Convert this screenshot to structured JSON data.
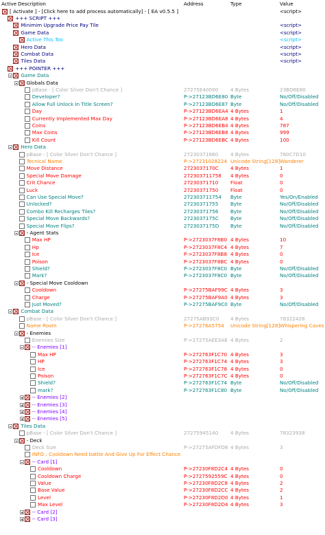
{
  "header": {
    "active": "Active",
    "description": "Description",
    "address": "Address",
    "type": "Type",
    "value": "Value"
  },
  "colors": {
    "black": "#000000",
    "navy": "#00007f",
    "red": "#ff0000",
    "gray": "#aaaaaa",
    "teal": "#008080",
    "orange": "#ff8000",
    "purple": "#7f00ff",
    "cyan": "#00bfff",
    "blue": "#0000ff"
  },
  "rows": [
    {
      "indent": 0,
      "box": "x",
      "desc": "[ Activate ] - [Click here to add process automatically] - [ EA v0.5.5 ]",
      "addr": "",
      "type": "",
      "val": "<script>",
      "color": "black"
    },
    {
      "indent": 1,
      "box": "x",
      "desc": "+++ SCRIPT +++",
      "addr": "",
      "type": "",
      "val": "",
      "color": "navy"
    },
    {
      "indent": 2,
      "box": "x",
      "desc": "Minimim Upgrade Price Pay Tile",
      "addr": "",
      "type": "",
      "val": "<script>",
      "color": "navy"
    },
    {
      "indent": 2,
      "box": "x",
      "desc": "Game Data",
      "addr": "",
      "type": "",
      "val": "<script>",
      "color": "navy"
    },
    {
      "indent": 3,
      "box": "x",
      "desc": "Active This Too",
      "addr": "",
      "type": "",
      "val": "<script>",
      "color": "cyan"
    },
    {
      "indent": 2,
      "box": "x",
      "desc": "Hero Data",
      "addr": "",
      "type": "",
      "val": "<script>",
      "color": "navy"
    },
    {
      "indent": 2,
      "box": "x",
      "desc": "Combat Data",
      "addr": "",
      "type": "",
      "val": "<script>",
      "color": "navy"
    },
    {
      "indent": 2,
      "box": "x",
      "desc": "Tiles Data",
      "addr": "",
      "type": "",
      "val": "<script>",
      "color": "navy"
    },
    {
      "indent": 1,
      "box": "x",
      "desc": "+++ POINTER +++",
      "addr": "",
      "type": "",
      "val": "",
      "color": "navy"
    },
    {
      "indent": 2,
      "exp": "minus",
      "box": "x",
      "desc": "Game Data",
      "addr": "",
      "type": "",
      "val": "",
      "color": "teal"
    },
    {
      "indent": 3,
      "exp": "minus",
      "box": "x",
      "desc": "Globals Data",
      "addr": "",
      "type": "",
      "val": "",
      "color": "black"
    },
    {
      "indent": 4,
      "box": "e",
      "desc": "pBase - [ Color Silver Don't Chance ]",
      "addr": "27275E40000",
      "type": "4 Bytes",
      "val": "23BD6E80",
      "color": "gray"
    },
    {
      "indent": 4,
      "box": "e",
      "desc": "Developer?",
      "addr": "P->27123BD6E80",
      "type": "Byte",
      "val": "No/Off/Disabled",
      "color": "teal"
    },
    {
      "indent": 4,
      "box": "e",
      "desc": "Allow Full Unlock In Title Screen?",
      "addr": "P->27123BD6E87",
      "type": "Byte",
      "val": "No/Off/Disabled",
      "color": "teal"
    },
    {
      "indent": 4,
      "box": "e",
      "desc": "Day",
      "addr": "P->27123BD6EA4",
      "type": "4 Bytes",
      "val": "1",
      "color": "red"
    },
    {
      "indent": 4,
      "box": "e",
      "desc": "Currently Implemented Max Day",
      "addr": "P->27123BD6EA8",
      "type": "4 Bytes",
      "val": "4",
      "color": "red"
    },
    {
      "indent": 4,
      "box": "e",
      "desc": "Coins",
      "addr": "P->27123BD6EB4",
      "type": "4 Bytes",
      "val": "787",
      "color": "red"
    },
    {
      "indent": 4,
      "box": "e",
      "desc": "Max Coins",
      "addr": "P->27123BD6EB8",
      "type": "4 Bytes",
      "val": "999",
      "color": "red"
    },
    {
      "indent": 4,
      "box": "e",
      "desc": "Kill Count",
      "addr": "P->27123BD6EBC",
      "type": "4 Bytes",
      "val": "100",
      "color": "red"
    },
    {
      "indent": 2,
      "exp": "minus",
      "box": "x",
      "desc": "Hero Data",
      "addr": "",
      "type": "",
      "val": "",
      "color": "teal"
    },
    {
      "indent": 3,
      "box": "e",
      "desc": "pBase - [ Color Silver Don't Chance ]",
      "addr": "27230371660",
      "type": "4 Bytes",
      "val": "780C7D10",
      "color": "gray"
    },
    {
      "indent": 3,
      "box": "e",
      "desc": "Tecnical Name",
      "addr": "P->27231028224",
      "type": "Unicode String[128]",
      "val": "Wanderer",
      "color": "orange"
    },
    {
      "indent": 3,
      "box": "e",
      "desc": "Move Distance",
      "addr": "2723037170C",
      "type": "4 Bytes",
      "val": "1",
      "color": "red"
    },
    {
      "indent": 3,
      "box": "e",
      "desc": "Special Move Damage",
      "addr": "272303711758",
      "type": "4 Bytes",
      "val": "0",
      "color": "red"
    },
    {
      "indent": 3,
      "box": "e",
      "desc": "Crit Chance",
      "addr": "27230371710",
      "type": "Float",
      "val": "0",
      "color": "red"
    },
    {
      "indent": 3,
      "box": "e",
      "desc": "Luck",
      "addr": "27230371750",
      "type": "Float",
      "val": "0",
      "color": "red"
    },
    {
      "indent": 3,
      "box": "e",
      "desc": "Can Use Special Move?",
      "addr": "272303711754",
      "type": "Byte",
      "val": "Yes/On/Enabled",
      "color": "teal"
    },
    {
      "indent": 3,
      "box": "e",
      "desc": "Unlocked?",
      "addr": "27230371755",
      "type": "Byte",
      "val": "No/Off/Disabled",
      "color": "teal"
    },
    {
      "indent": 3,
      "box": "e",
      "desc": "Combo Kill Recharges Tiles?",
      "addr": "27230371756",
      "type": "Byte",
      "val": "No/Off/Disabled",
      "color": "teal"
    },
    {
      "indent": 3,
      "box": "e",
      "desc": "Special Move Backwards?",
      "addr": "2723037175C",
      "type": "Byte",
      "val": "No/Off/Disabled",
      "color": "teal"
    },
    {
      "indent": 3,
      "box": "e",
      "desc": "Special Move Flips?",
      "addr": "2723037175D",
      "type": "Byte",
      "val": "No/Off/Disabled",
      "color": "teal"
    },
    {
      "indent": 3,
      "exp": "minus",
      "box": "x",
      "desc": "- Agent Stats",
      "addr": "",
      "type": "",
      "val": "",
      "color": "black"
    },
    {
      "indent": 4,
      "box": "e",
      "desc": "Max HP",
      "addr": "P->2723037F8B0",
      "type": "4 Bytes",
      "val": "10",
      "color": "red"
    },
    {
      "indent": 4,
      "box": "e",
      "desc": "Hp",
      "addr": "P->2723037F8C4",
      "type": "4 Bytes",
      "val": "7",
      "color": "red"
    },
    {
      "indent": 4,
      "box": "e",
      "desc": "Ice",
      "addr": "P->2723037F8B8",
      "type": "4 Bytes",
      "val": "0",
      "color": "red"
    },
    {
      "indent": 4,
      "box": "e",
      "desc": "Poison",
      "addr": "P->2723037F8BC",
      "type": "4 Bytes",
      "val": "0",
      "color": "red"
    },
    {
      "indent": 4,
      "box": "e",
      "desc": "Shield?",
      "addr": "P->2723037F8C0",
      "type": "Byte",
      "val": "No/Off/Disabled",
      "color": "teal"
    },
    {
      "indent": 4,
      "box": "e",
      "desc": "Mark?",
      "addr": "P->2723037F8C0",
      "type": "Byte",
      "val": "No/Off/Disabled",
      "color": "teal"
    },
    {
      "indent": 3,
      "exp": "minus",
      "box": "x",
      "desc": "- Special Move Cooldown",
      "addr": "",
      "type": "",
      "val": "",
      "color": "black"
    },
    {
      "indent": 4,
      "box": "e",
      "desc": "Cooldown",
      "addr": "P->27275BAF99C",
      "type": "4 Bytes",
      "val": "3",
      "color": "red"
    },
    {
      "indent": 4,
      "box": "e",
      "desc": "Charge",
      "addr": "P->27275BAF9A0",
      "type": "4 Bytes",
      "val": "3",
      "color": "red"
    },
    {
      "indent": 4,
      "box": "e",
      "desc": "Just Moved?",
      "addr": "P->27275BAF9C0",
      "type": "Byte",
      "val": "No/Off/Disabled",
      "color": "teal"
    },
    {
      "indent": 2,
      "exp": "minus",
      "box": "x",
      "desc": "Combat Data",
      "addr": "",
      "type": "",
      "val": "",
      "color": "teal"
    },
    {
      "indent": 3,
      "box": "e",
      "desc": "pBase - [ Color Silver Don't Chance ]",
      "addr": "27275AB93C0",
      "type": "4 Bytes",
      "val": "78322428",
      "color": "gray"
    },
    {
      "indent": 3,
      "box": "e",
      "desc": "Name Room",
      "addr": "P->27276A5754",
      "type": "Unicode String[128]",
      "val": "Whispering Caves - F",
      "color": "orange"
    },
    {
      "indent": 3,
      "exp": "minus",
      "box": "x",
      "desc": "- Enemies",
      "addr": "",
      "type": "",
      "val": "",
      "color": "black"
    },
    {
      "indent": 4,
      "box": "e",
      "desc": "Enemies Size",
      "addr": "P->27275AEE3A8",
      "type": "4 Bytes",
      "val": "2",
      "color": "gray"
    },
    {
      "indent": 4,
      "exp": "minus",
      "box": "x",
      "desc": "-- Enemies [1]",
      "addr": "",
      "type": "",
      "val": "",
      "color": "purple"
    },
    {
      "indent": 5,
      "box": "e",
      "desc": "Max HP",
      "addr": "P->272763F1C70",
      "type": "4 Bytes",
      "val": "3",
      "color": "red"
    },
    {
      "indent": 5,
      "box": "e",
      "desc": "HP",
      "addr": "P->272763F1C74",
      "type": "4 Bytes",
      "val": "3",
      "color": "red"
    },
    {
      "indent": 5,
      "box": "e",
      "desc": "Ice",
      "addr": "P->272763F1C78",
      "type": "4 Bytes",
      "val": "0",
      "color": "red"
    },
    {
      "indent": 5,
      "box": "e",
      "desc": "Poison",
      "addr": "P->272763F1C7C",
      "type": "4 Bytes",
      "val": "0",
      "color": "red"
    },
    {
      "indent": 5,
      "box": "e",
      "desc": "Shield?",
      "addr": "P->272763F1C74",
      "type": "Byte",
      "val": "No/Off/Disabled",
      "color": "teal"
    },
    {
      "indent": 5,
      "box": "e",
      "desc": "mark?",
      "addr": "P->272763F1C80",
      "type": "Byte",
      "val": "No/Off/Disabled",
      "color": "teal"
    },
    {
      "indent": 4,
      "exp": "plus",
      "box": "x",
      "desc": "-- Enemies [2]",
      "addr": "",
      "type": "",
      "val": "",
      "color": "purple"
    },
    {
      "indent": 4,
      "exp": "plus",
      "box": "x",
      "desc": "-- Enemies [3]",
      "addr": "",
      "type": "",
      "val": "",
      "color": "purple"
    },
    {
      "indent": 4,
      "exp": "plus",
      "box": "x",
      "desc": "-- Enemies [4]",
      "addr": "",
      "type": "",
      "val": "",
      "color": "purple"
    },
    {
      "indent": 4,
      "exp": "plus",
      "box": "x",
      "desc": "-- Enemies [5]",
      "addr": "",
      "type": "",
      "val": "",
      "color": "purple"
    },
    {
      "indent": 2,
      "exp": "minus",
      "box": "x",
      "desc": "Tiles Data",
      "addr": "",
      "type": "",
      "val": "",
      "color": "teal"
    },
    {
      "indent": 3,
      "box": "e",
      "desc": "pBase - [ Color Silver Don't Chance ]",
      "addr": "27275945140",
      "type": "4 Bytes",
      "val": "78323938",
      "color": "gray"
    },
    {
      "indent": 3,
      "exp": "minus",
      "box": "x",
      "desc": "- Deck",
      "addr": "",
      "type": "",
      "val": "",
      "color": "black"
    },
    {
      "indent": 4,
      "box": "e",
      "desc": "Deck Size",
      "addr": "P->27275AFDFD8",
      "type": "4 Bytes",
      "val": "3",
      "color": "gray"
    },
    {
      "indent": 4,
      "box": "e",
      "desc": "INFO : Cooldown Need battle And Give Up For Effect Chance",
      "addr": "",
      "type": "",
      "val": "",
      "color": "orange"
    },
    {
      "indent": 4,
      "exp": "minus",
      "box": "x",
      "desc": "-- Card [1]",
      "addr": "",
      "type": "",
      "val": "",
      "color": "purple"
    },
    {
      "indent": 5,
      "box": "e",
      "desc": "Cooldown",
      "addr": "P->27230F8D2C4",
      "type": "4 Bytes",
      "val": "0",
      "color": "red"
    },
    {
      "indent": 5,
      "box": "e",
      "desc": "Cooldown Charge",
      "addr": "P->2727592559C",
      "type": "4 Bytes",
      "val": "0",
      "color": "red"
    },
    {
      "indent": 5,
      "box": "e",
      "desc": "Value",
      "addr": "P->27230F8D2C8",
      "type": "4 Bytes",
      "val": "2",
      "color": "red"
    },
    {
      "indent": 5,
      "box": "e",
      "desc": "Base Value",
      "addr": "P->27230F8D2CC",
      "type": "4 Bytes",
      "val": "2",
      "color": "red"
    },
    {
      "indent": 5,
      "box": "e",
      "desc": "Level",
      "addr": "P->27230F8D2D0",
      "type": "4 Bytes",
      "val": "1",
      "color": "red"
    },
    {
      "indent": 5,
      "box": "e",
      "desc": "Max Level",
      "addr": "P->27230F8D2D4",
      "type": "4 Bytes",
      "val": "3",
      "color": "red"
    },
    {
      "indent": 4,
      "exp": "plus",
      "box": "x",
      "desc": "-- Card [2]",
      "addr": "",
      "type": "",
      "val": "",
      "color": "purple"
    },
    {
      "indent": 4,
      "exp": "plus",
      "box": "x",
      "desc": "-- Card [3]",
      "addr": "",
      "type": "",
      "val": "",
      "color": "purple"
    }
  ]
}
